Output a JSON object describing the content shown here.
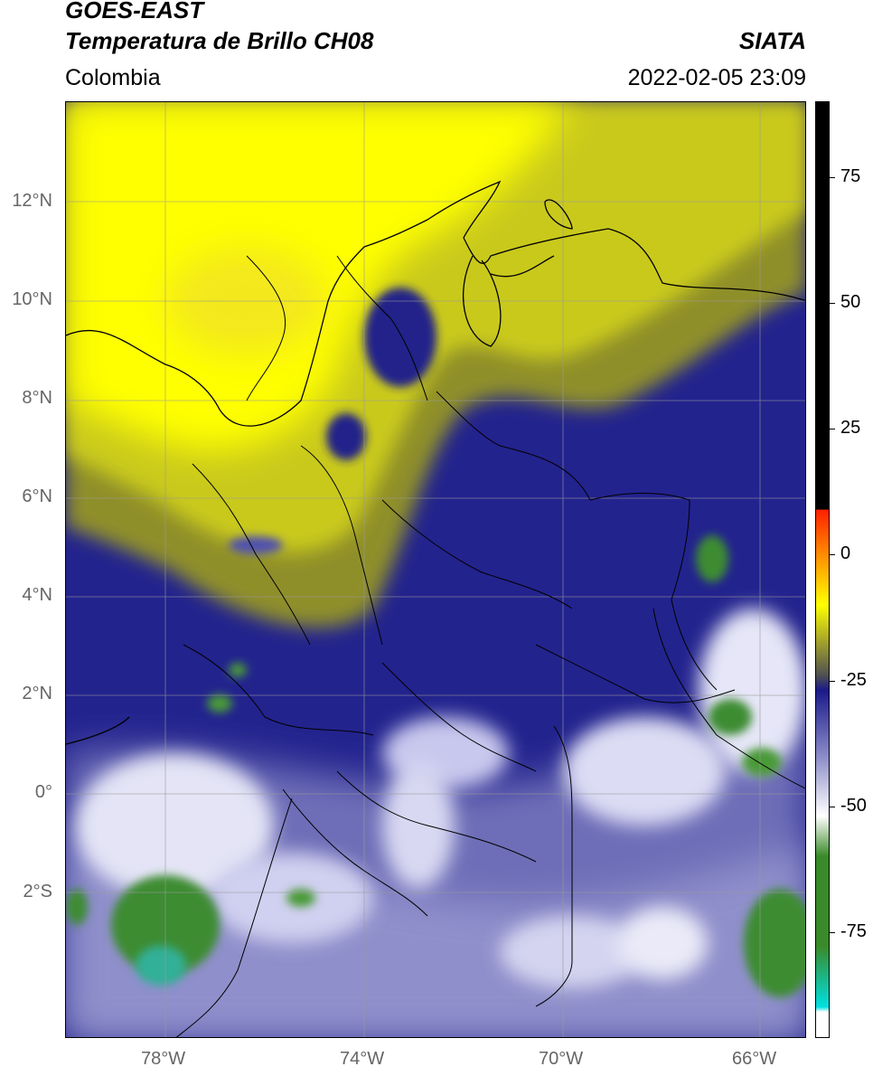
{
  "header": {
    "satellite": "GOES-EAST",
    "product": "Temperatura de Brillo CH08",
    "org": "SIATA",
    "region": "Colombia",
    "datetime": "2022-02-05 23:09"
  },
  "map": {
    "lat_labels": [
      "12°N",
      "10°N",
      "8°N",
      "6°N",
      "4°N",
      "2°N",
      "0°",
      "2°S"
    ],
    "lon_labels": [
      "78°W",
      "74°W",
      "70°W",
      "66°W"
    ],
    "lat_range": [
      -4.6,
      14.0
    ],
    "lon_range": [
      -79.9,
      -65.0
    ]
  },
  "colorbar": {
    "tick_labels": [
      "75",
      "50",
      "25",
      "0",
      "-25",
      "-50",
      "-75"
    ],
    "tick_values": [
      75,
      50,
      25,
      0,
      -25,
      -50,
      -75
    ],
    "range": [
      -96,
      90
    ],
    "colors": {
      "black": "#000000",
      "red": "#ff2000",
      "orange": "#ff8c00",
      "yellow": "#ffff00",
      "olive": "#9a9a30",
      "gray": "#505050",
      "navy": "#1a1a8a",
      "periwinkle": "#8a8ac8",
      "white": "#ffffff",
      "green": "#3a8a2a",
      "cyan": "#00e0e0"
    }
  }
}
